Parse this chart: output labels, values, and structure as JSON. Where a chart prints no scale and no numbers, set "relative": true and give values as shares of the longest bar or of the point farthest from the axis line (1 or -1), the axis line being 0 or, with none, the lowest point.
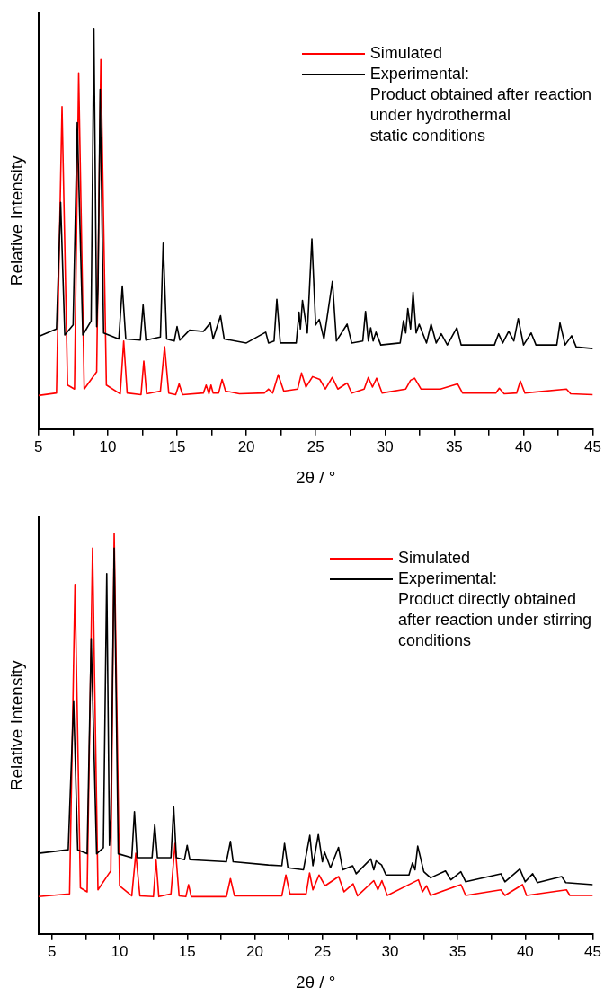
{
  "chart_data": [
    {
      "type": "line",
      "relative": true,
      "xlabel": "2θ / °",
      "ylabel": "Relative Intensity",
      "legend": "top right",
      "marker": "none",
      "line_style": "solid",
      "xlim": [
        5,
        45
      ],
      "xticks": [
        5,
        {
          "value": 7.5,
          "label": null
        },
        10,
        {
          "value": 12.5,
          "label": null
        },
        15,
        {
          "value": 17.5,
          "label": null
        },
        20,
        {
          "value": 22.5,
          "label": null
        },
        25,
        {
          "value": 27.5,
          "label": null
        },
        30,
        {
          "value": 32.5,
          "label": null
        },
        35,
        {
          "value": 37.5,
          "label": null
        },
        40,
        {
          "value": 42.5,
          "label": null
        },
        45
      ],
      "series": [
        {
          "name": "Simulated",
          "color": "#ff0000",
          "x": [
            5,
            6.3,
            6.7,
            7.1,
            7.6,
            7.9,
            8.3,
            9.2,
            9.5,
            9.9,
            10.9,
            11.15,
            11.4,
            12.4,
            12.6,
            12.8,
            13.8,
            14.1,
            14.4,
            14.9,
            15.15,
            15.4,
            16.9,
            17.1,
            17.3,
            17.45,
            17.6,
            18.0,
            18.25,
            18.5,
            19.5,
            21.3,
            21.6,
            21.9,
            22.3,
            22.7,
            23.7,
            23.98,
            24.3,
            24.78,
            25.3,
            25.7,
            26.2,
            26.6,
            27.27,
            27.6,
            28.5,
            28.8,
            29.1,
            29.4,
            29.8,
            31.5,
            31.85,
            32.14,
            32.6,
            34.0,
            35.24,
            35.6,
            38.0,
            38.25,
            38.6,
            39.5,
            39.77,
            40.1,
            43.1,
            43.4,
            45
          ],
          "values": [
            0.084,
            0.09,
            0.805,
            0.11,
            0.1,
            0.889,
            0.1,
            0.143,
            0.923,
            0.11,
            0.088,
            0.22,
            0.09,
            0.086,
            0.17,
            0.088,
            0.095,
            0.206,
            0.09,
            0.086,
            0.113,
            0.086,
            0.09,
            0.11,
            0.088,
            0.11,
            0.09,
            0.09,
            0.124,
            0.095,
            0.088,
            0.09,
            0.1,
            0.09,
            0.136,
            0.095,
            0.1,
            0.14,
            0.105,
            0.131,
            0.124,
            0.1,
            0.129,
            0.1,
            0.115,
            0.09,
            0.1,
            0.129,
            0.105,
            0.127,
            0.09,
            0.1,
            0.122,
            0.127,
            0.1,
            0.1,
            0.113,
            0.09,
            0.09,
            0.102,
            0.088,
            0.09,
            0.12,
            0.09,
            0.1,
            0.088,
            0.086
          ]
        },
        {
          "name": "Experimental:\nProduct obtained after reaction\nunder hydrothermal\nstatic conditions",
          "color": "#000000",
          "x": [
            5,
            6.3,
            6.6,
            6.9,
            7.5,
            7.8,
            8.2,
            8.8,
            9.0,
            9.2,
            9.3,
            9.45,
            9.7,
            10.8,
            11.05,
            11.3,
            12.35,
            12.55,
            12.75,
            13.8,
            14.0,
            14.25,
            14.8,
            15.0,
            15.2,
            15.9,
            16.9,
            17.4,
            17.6,
            18.14,
            18.4,
            20.0,
            21.4,
            21.6,
            22.0,
            22.2,
            22.45,
            23.6,
            23.8,
            23.9,
            24.05,
            24.4,
            24.73,
            25.0,
            25.26,
            25.6,
            26.21,
            26.5,
            27.27,
            27.6,
            28.4,
            28.6,
            28.8,
            28.97,
            29.15,
            29.35,
            29.7,
            31.1,
            31.34,
            31.5,
            31.65,
            31.85,
            32.03,
            32.25,
            32.47,
            33.0,
            33.33,
            33.7,
            34.06,
            34.5,
            35.19,
            35.5,
            37.9,
            38.2,
            38.5,
            38.93,
            39.3,
            39.62,
            40.0,
            40.55,
            40.9,
            42.4,
            42.63,
            43.0,
            43.47,
            43.8,
            45
          ],
          "values": [
            0.231,
            0.25,
            0.566,
            0.235,
            0.26,
            0.765,
            0.235,
            0.27,
            1.0,
            0.256,
            0.357,
            0.848,
            0.24,
            0.225,
            0.357,
            0.225,
            0.222,
            0.31,
            0.222,
            0.23,
            0.464,
            0.225,
            0.22,
            0.256,
            0.222,
            0.247,
            0.244,
            0.265,
            0.225,
            0.283,
            0.225,
            0.215,
            0.242,
            0.215,
            0.22,
            0.324,
            0.215,
            0.215,
            0.292,
            0.25,
            0.321,
            0.24,
            0.475,
            0.26,
            0.274,
            0.225,
            0.369,
            0.22,
            0.262,
            0.215,
            0.22,
            0.294,
            0.22,
            0.253,
            0.22,
            0.242,
            0.21,
            0.215,
            0.271,
            0.24,
            0.301,
            0.25,
            0.342,
            0.24,
            0.262,
            0.215,
            0.262,
            0.215,
            0.238,
            0.21,
            0.253,
            0.21,
            0.21,
            0.238,
            0.215,
            0.244,
            0.22,
            0.276,
            0.21,
            0.24,
            0.21,
            0.21,
            0.265,
            0.21,
            0.233,
            0.205,
            0.201
          ]
        }
      ]
    },
    {
      "type": "line",
      "relative": true,
      "xlabel": "2θ / °",
      "ylabel": "Relative Intensity",
      "legend": "top right",
      "marker": "none",
      "line_style": "solid",
      "xlim": [
        4,
        45
      ],
      "xticks": [
        5,
        {
          "value": 7.5,
          "label": null
        },
        10,
        {
          "value": 12.5,
          "label": null
        },
        15,
        {
          "value": 17.5,
          "label": null
        },
        20,
        {
          "value": 22.5,
          "label": null
        },
        25,
        {
          "value": 27.5,
          "label": null
        },
        30,
        {
          "value": 32.5,
          "label": null
        },
        35,
        {
          "value": 37.5,
          "label": null
        },
        40,
        {
          "value": 42.5,
          "label": null
        },
        45
      ],
      "series": [
        {
          "name": "Simulated",
          "color": "#ff0000",
          "x": [
            4,
            6.3,
            6.7,
            7.1,
            7.6,
            8.0,
            8.4,
            9.2,
            9.35,
            9.6,
            10.0,
            10.9,
            11.2,
            11.5,
            12.5,
            12.7,
            12.9,
            13.8,
            14.1,
            14.4,
            14.9,
            15.1,
            15.3,
            17.9,
            18.2,
            18.5,
            22.0,
            22.3,
            22.6,
            23.8,
            24.05,
            24.3,
            24.75,
            25.2,
            26.2,
            26.6,
            27.27,
            27.6,
            28.8,
            29.1,
            29.4,
            29.8,
            32.1,
            32.4,
            32.7,
            33.0,
            35.25,
            35.6,
            38.2,
            38.5,
            39.8,
            40.1,
            43.05,
            43.3,
            45
          ],
          "values": [
            0.093,
            0.1,
            0.872,
            0.115,
            0.105,
            0.963,
            0.11,
            0.15,
            0.157,
            1.0,
            0.12,
            0.095,
            0.201,
            0.095,
            0.093,
            0.184,
            0.093,
            0.1,
            0.226,
            0.095,
            0.093,
            0.123,
            0.093,
            0.093,
            0.138,
            0.095,
            0.095,
            0.147,
            0.1,
            0.1,
            0.152,
            0.11,
            0.147,
            0.12,
            0.143,
            0.105,
            0.125,
            0.095,
            0.133,
            0.11,
            0.133,
            0.096,
            0.135,
            0.105,
            0.12,
            0.096,
            0.123,
            0.096,
            0.11,
            0.096,
            0.123,
            0.096,
            0.11,
            0.096,
            0.096
          ]
        },
        {
          "name": "Experimental:\nProduct directly obtained\nafter reaction under stirring\nconditions",
          "color": "#000000",
          "x": [
            4,
            6.2,
            6.6,
            6.9,
            7.6,
            7.9,
            8.3,
            8.8,
            9.05,
            9.25,
            9.35,
            9.6,
            9.9,
            10.9,
            11.1,
            11.3,
            12.4,
            12.6,
            12.8,
            13.8,
            14.0,
            14.2,
            14.8,
            15.0,
            15.2,
            17.9,
            18.2,
            18.4,
            21.0,
            22.0,
            22.2,
            22.45,
            23.6,
            24.07,
            24.3,
            24.7,
            25.0,
            25.16,
            25.6,
            26.19,
            26.5,
            27.24,
            27.5,
            28.58,
            28.8,
            28.97,
            29.38,
            29.7,
            31.4,
            31.66,
            31.85,
            32.05,
            32.5,
            33.0,
            34.1,
            34.5,
            35.24,
            35.6,
            38.2,
            38.5,
            39.6,
            40.0,
            40.55,
            40.9,
            42.7,
            43.0,
            45
          ],
          "values": [
            0.201,
            0.21,
            0.582,
            0.21,
            0.2,
            0.737,
            0.2,
            0.215,
            0.899,
            0.221,
            0.287,
            0.963,
            0.2,
            0.19,
            0.305,
            0.19,
            0.19,
            0.273,
            0.19,
            0.19,
            0.317,
            0.19,
            0.185,
            0.221,
            0.185,
            0.18,
            0.231,
            0.18,
            0.172,
            0.17,
            0.226,
            0.165,
            0.16,
            0.246,
            0.17,
            0.248,
            0.18,
            0.204,
            0.165,
            0.216,
            0.16,
            0.17,
            0.15,
            0.187,
            0.16,
            0.182,
            0.172,
            0.147,
            0.147,
            0.177,
            0.16,
            0.219,
            0.155,
            0.14,
            0.157,
            0.135,
            0.155,
            0.13,
            0.15,
            0.13,
            0.162,
            0.13,
            0.15,
            0.128,
            0.143,
            0.128,
            0.123
          ]
        }
      ]
    }
  ]
}
